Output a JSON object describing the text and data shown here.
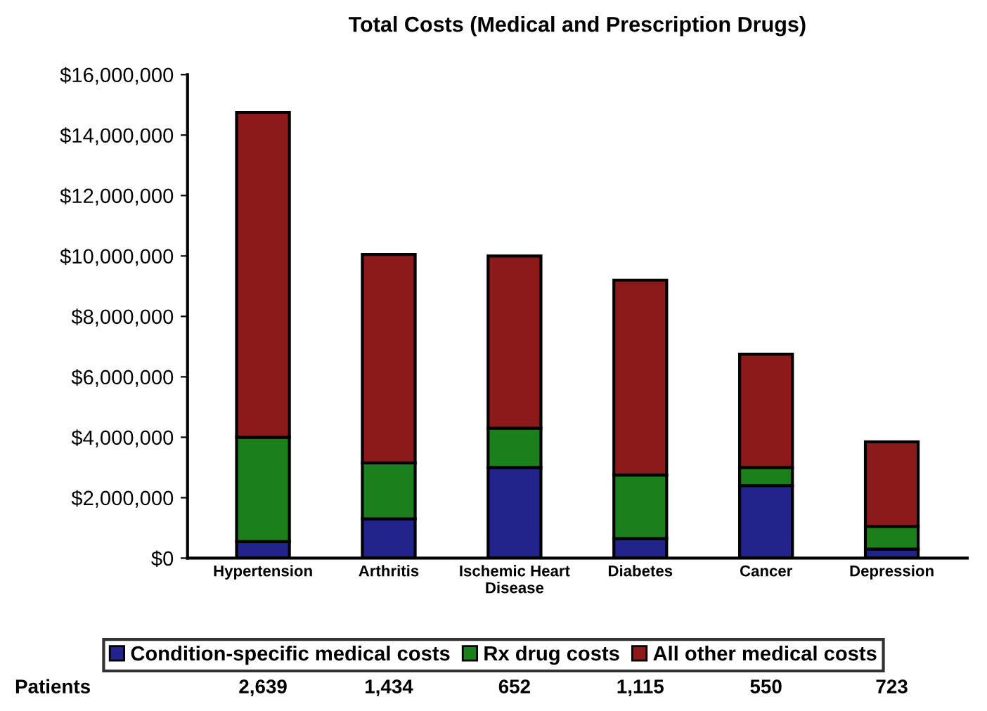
{
  "chart_data": {
    "type": "bar",
    "title": "Total Costs (Medical and Prescription Drugs)",
    "categories": [
      "Hypertension",
      "Arthritis",
      "Ischemic Heart\nDisease",
      "Diabetes",
      "Cancer",
      "Depression"
    ],
    "stacked": true,
    "series": [
      {
        "name": "Condition-specific medical costs",
        "color": "#23238c",
        "values": [
          550000,
          1300000,
          3000000,
          650000,
          2400000,
          300000
        ]
      },
      {
        "name": "Rx drug costs",
        "color": "#1b7f1b",
        "values": [
          3450000,
          1850000,
          1300000,
          2100000,
          600000,
          750000
        ]
      },
      {
        "name": "All other medical costs",
        "color": "#8c1a1a",
        "values": [
          10750000,
          6900000,
          5700000,
          6450000,
          3750000,
          2800000
        ]
      }
    ],
    "ylim": [
      0,
      16000000
    ],
    "yticks": [
      {
        "value": 0,
        "label": "$0"
      },
      {
        "value": 2000000,
        "label": "$2,000,000"
      },
      {
        "value": 4000000,
        "label": "$4,000,000"
      },
      {
        "value": 6000000,
        "label": "$6,000,000"
      },
      {
        "value": 8000000,
        "label": "$8,000,000"
      },
      {
        "value": 10000000,
        "label": "$10,000,000"
      },
      {
        "value": 12000000,
        "label": "$12,000,000"
      },
      {
        "value": 14000000,
        "label": "$14,000,000"
      },
      {
        "value": 16000000,
        "label": "$16,000,000"
      }
    ],
    "legend": "bottom",
    "grid": false,
    "annotations": [
      "Patients",
      "2,639",
      "1,434",
      "652",
      "1,115",
      "550",
      "723"
    ]
  }
}
